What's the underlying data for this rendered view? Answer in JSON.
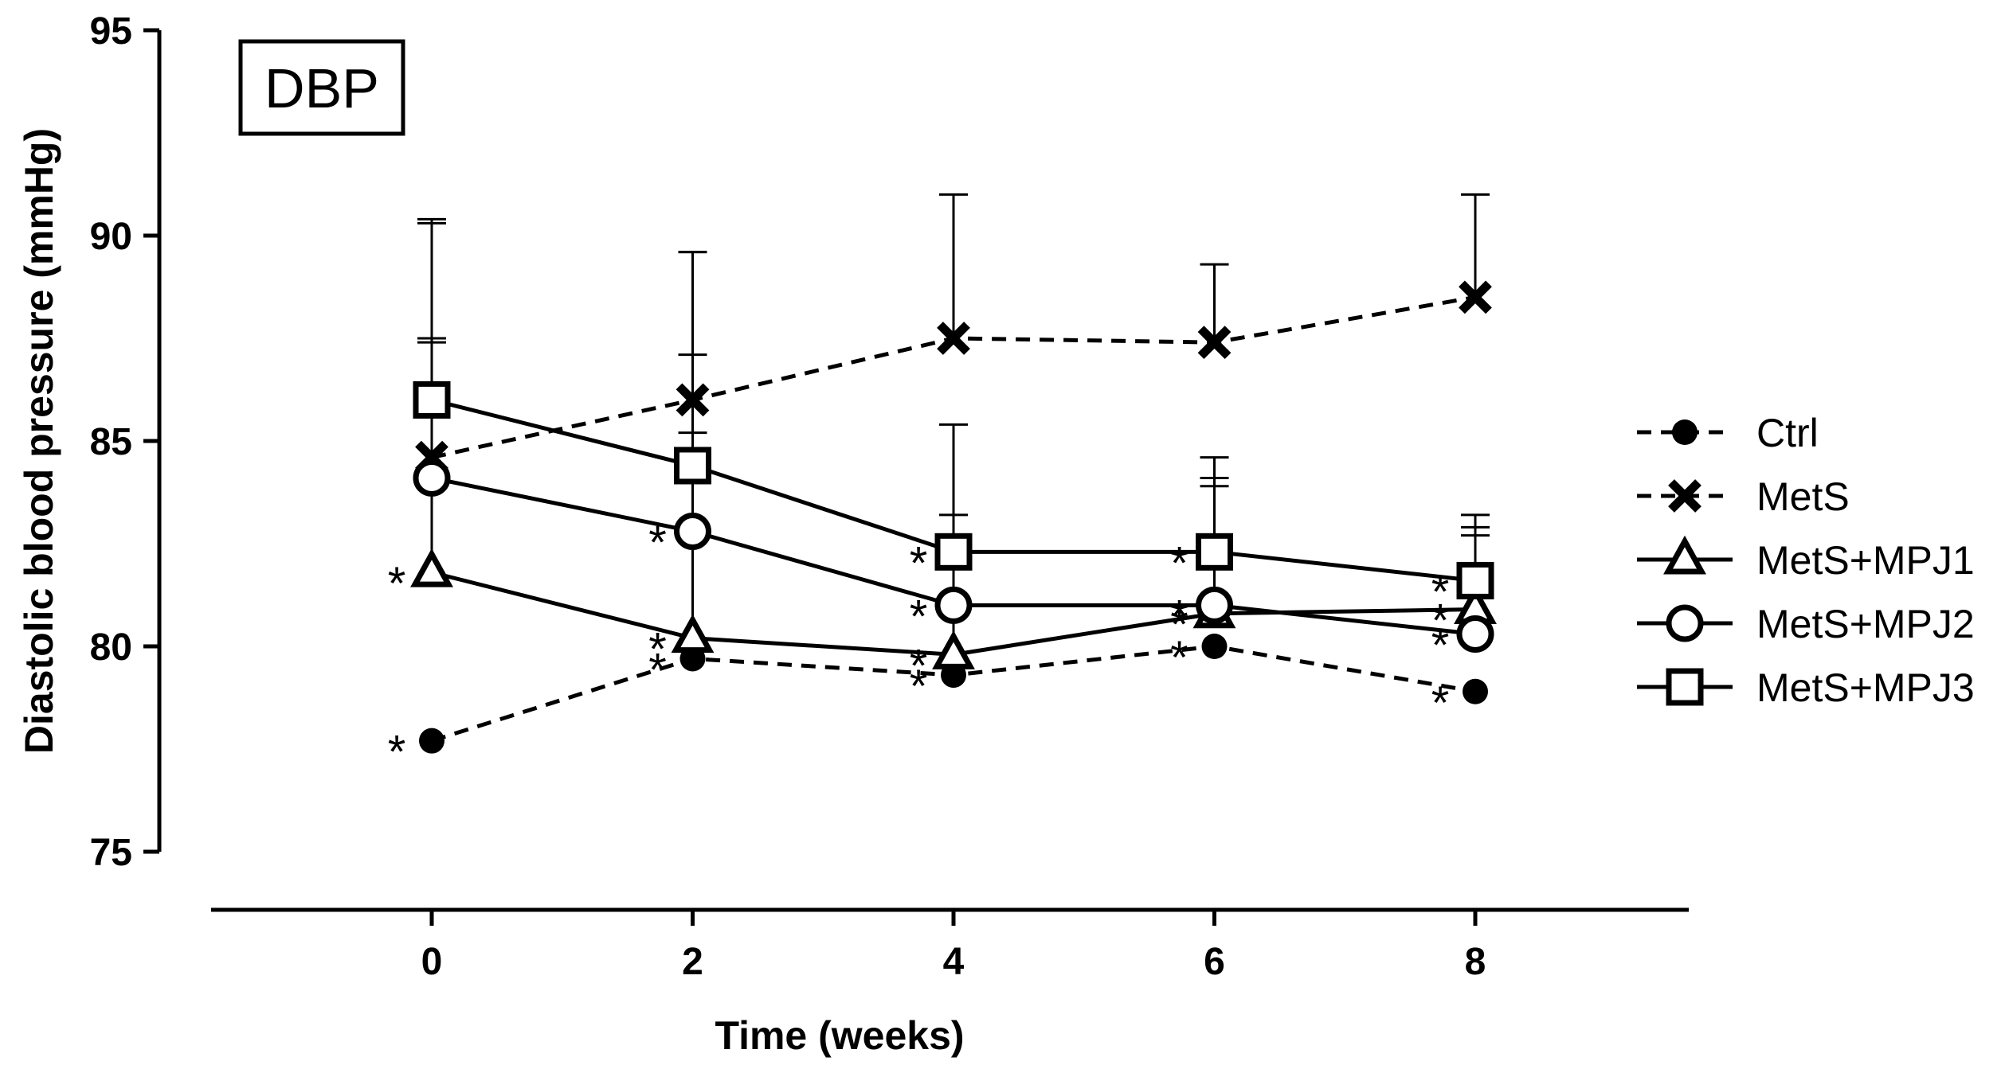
{
  "chart_data": {
    "type": "line",
    "panel_label": "DBP",
    "title": "",
    "xlabel": "Time (weeks)",
    "ylabel": "Diastolic blood pressure (mmHg)",
    "x": [
      0,
      2,
      4,
      6,
      8
    ],
    "x_ticks": [
      "0",
      "2",
      "4",
      "6",
      "8"
    ],
    "xlim": [
      -1.7,
      9.7
    ],
    "ylim": [
      75,
      95
    ],
    "y_ticks": [
      "75",
      "80",
      "85",
      "90",
      "95"
    ],
    "y_tick_values": [
      75,
      80,
      85,
      90,
      95
    ],
    "grid": false,
    "legend_position": "right",
    "significance_marker": "*",
    "series": [
      {
        "name": "Ctrl",
        "marker": "filled-circle",
        "line_style": "dashed",
        "values": [
          77.7,
          79.7,
          79.3,
          80.0,
          78.9
        ],
        "error_upper": [
          null,
          null,
          null,
          null,
          null
        ],
        "significant": [
          true,
          true,
          true,
          true,
          true
        ]
      },
      {
        "name": "MetS",
        "marker": "cross",
        "line_style": "dashed",
        "values": [
          84.6,
          86.0,
          87.5,
          87.4,
          88.5
        ],
        "error_upper": [
          90.3,
          89.6,
          91.0,
          89.3,
          91.0
        ],
        "significant": [
          false,
          false,
          false,
          false,
          false
        ]
      },
      {
        "name": "MetS+MPJ1",
        "marker": "open-triangle",
        "line_style": "solid",
        "values": [
          81.8,
          80.2,
          79.8,
          80.8,
          80.9
        ],
        "error_upper": [
          87.4,
          87.1,
          82.3,
          83.9,
          82.7
        ],
        "significant": [
          true,
          true,
          true,
          true,
          true
        ]
      },
      {
        "name": "MetS+MPJ2",
        "marker": "open-circle",
        "line_style": "solid",
        "values": [
          84.1,
          82.8,
          81.0,
          81.0,
          80.3
        ],
        "error_upper": [
          87.5,
          85.2,
          83.2,
          84.1,
          82.9
        ],
        "significant": [
          false,
          true,
          true,
          true,
          true
        ]
      },
      {
        "name": "MetS+MPJ3",
        "marker": "open-square",
        "line_style": "solid",
        "values": [
          86.0,
          84.4,
          82.3,
          82.3,
          81.6
        ],
        "error_upper": [
          90.4,
          89.6,
          85.4,
          84.6,
          83.2
        ],
        "significant": [
          false,
          false,
          true,
          true,
          true
        ]
      }
    ]
  }
}
